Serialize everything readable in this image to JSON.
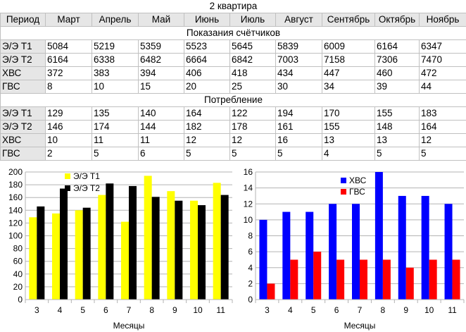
{
  "sheet": {
    "title": "2 квартира",
    "columns": [
      "Период",
      "Март",
      "Апрель",
      "Май",
      "Июнь",
      "Июль",
      "Август",
      "Сентябрь",
      "Октябрь",
      "Ноябрь"
    ],
    "section1": {
      "title": "Показания счётчиков",
      "rows": [
        {
          "label": "Э/Э Т1",
          "values": [
            "5084",
            "5219",
            "5359",
            "5523",
            "5645",
            "5839",
            "6009",
            "6164",
            "6347"
          ]
        },
        {
          "label": "Э/Э Т2",
          "values": [
            "6164",
            "6338",
            "6482",
            "6664",
            "6842",
            "7003",
            "7158",
            "7306",
            "7470"
          ]
        },
        {
          "label": "ХВС",
          "values": [
            "372",
            "383",
            "394",
            "406",
            "418",
            "434",
            "447",
            "460",
            "472"
          ]
        },
        {
          "label": "ГВС",
          "values": [
            "8",
            "10",
            "15",
            "20",
            "25",
            "30",
            "34",
            "39",
            "44"
          ]
        }
      ]
    },
    "section2": {
      "title": "Потребление",
      "rows": [
        {
          "label": "Э/Э Т1",
          "values": [
            "129",
            "135",
            "140",
            "164",
            "122",
            "194",
            "170",
            "155",
            "183"
          ]
        },
        {
          "label": "Э/Э Т2",
          "values": [
            "146",
            "174",
            "144",
            "182",
            "178",
            "161",
            "155",
            "148",
            "164"
          ]
        },
        {
          "label": "ХВС",
          "values": [
            "10",
            "11",
            "11",
            "12",
            "12",
            "16",
            "13",
            "13",
            "12"
          ]
        },
        {
          "label": "ГВС",
          "values": [
            "2",
            "5",
            "6",
            "5",
            "5",
            "5",
            "4",
            "5",
            "5"
          ]
        }
      ]
    }
  },
  "chart_data": [
    {
      "type": "bar",
      "xlabel": "Месяцы",
      "categories": [
        "3",
        "4",
        "5",
        "6",
        "7",
        "8",
        "9",
        "10",
        "11"
      ],
      "ylim": [
        0,
        200
      ],
      "yticks": [
        0,
        20,
        40,
        60,
        80,
        100,
        120,
        140,
        160,
        180,
        200
      ],
      "legend": "top-left",
      "series": [
        {
          "name": "Э/Э Т1",
          "color": "#ffff00",
          "values": [
            129,
            135,
            140,
            164,
            122,
            194,
            170,
            155,
            183
          ]
        },
        {
          "name": "Э/Э Т2",
          "color": "#000000",
          "values": [
            146,
            174,
            144,
            182,
            178,
            161,
            155,
            148,
            164
          ]
        }
      ]
    },
    {
      "type": "bar",
      "xlabel": "Месяцы",
      "categories": [
        "3",
        "4",
        "5",
        "6",
        "7",
        "8",
        "9",
        "10",
        "11"
      ],
      "ylim": [
        0,
        16
      ],
      "yticks": [
        0,
        2,
        4,
        6,
        8,
        10,
        12,
        14,
        16
      ],
      "legend": "top-left",
      "series": [
        {
          "name": "ХВС",
          "color": "#0000ff",
          "values": [
            10,
            11,
            11,
            12,
            12,
            16,
            13,
            13,
            12
          ]
        },
        {
          "name": "ГВС",
          "color": "#ff0000",
          "values": [
            2,
            5,
            6,
            5,
            5,
            5,
            4,
            5,
            5
          ]
        }
      ]
    }
  ]
}
